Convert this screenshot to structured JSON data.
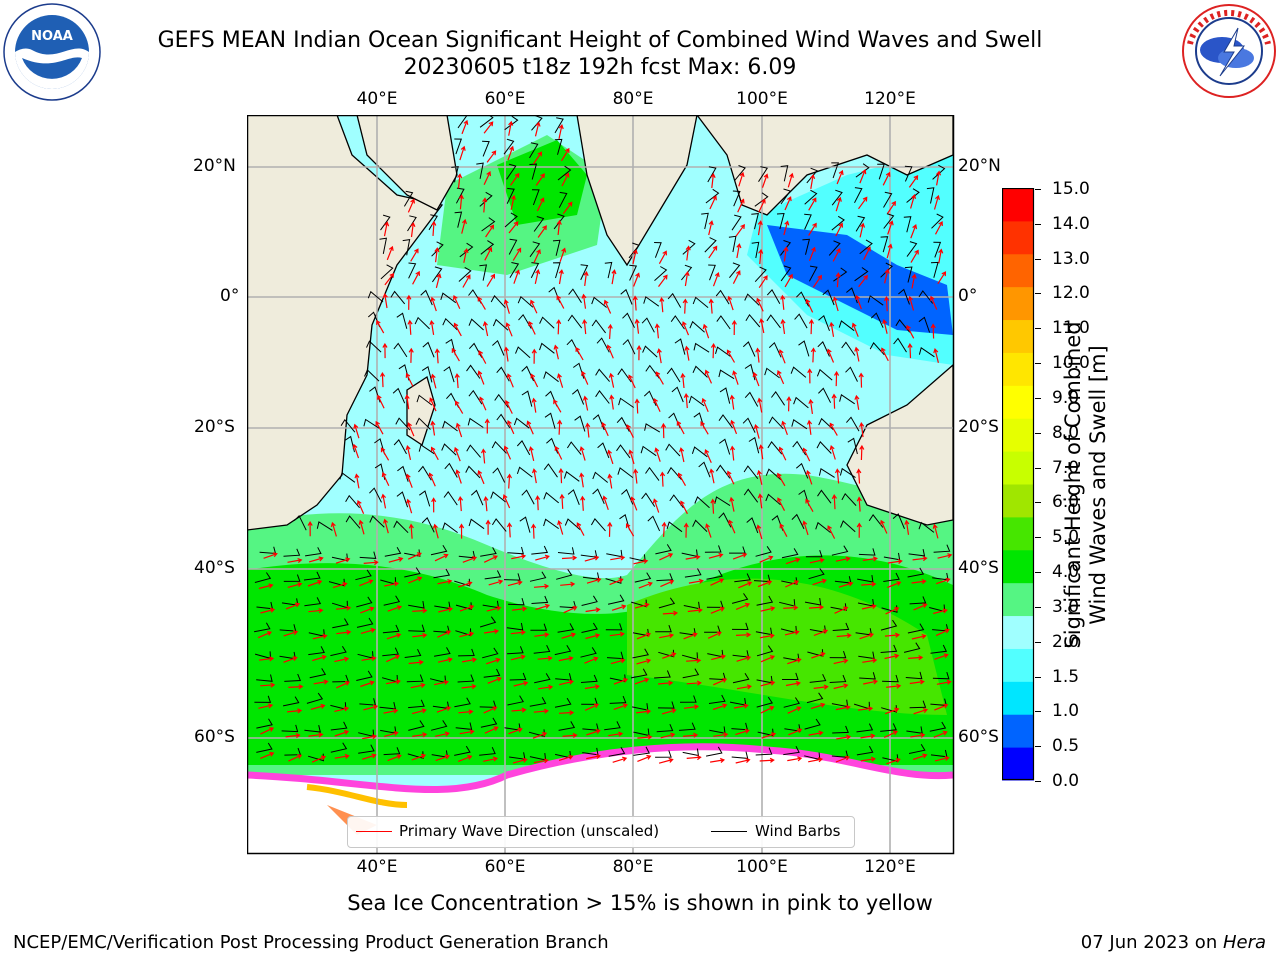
{
  "header": {
    "title_line1": "GEFS MEAN Indian Ocean Significant Height of Combined Wind Waves and Swell",
    "title_line2": "20230605 t18z 192h fcst   Max: 6.09"
  },
  "logos": {
    "left": "noaa-logo",
    "right": "nws-logo",
    "left_text": "NOAA"
  },
  "map": {
    "lon_labels": [
      "40°E",
      "60°E",
      "80°E",
      "100°E",
      "120°E"
    ],
    "lat_labels": [
      "20°N",
      "0°",
      "20°S",
      "40°S",
      "60°S"
    ],
    "colors": {
      "land": "#efecdc",
      "ice_free_polar": "#ffffff",
      "wave_barb": "#ff0000",
      "wind_barb": "#000000"
    }
  },
  "colorbar": {
    "ticks": [
      "15.0",
      "14.0",
      "13.0",
      "12.0",
      "11.0",
      "10.0",
      "9.0",
      "8.0",
      "7.0",
      "6.0",
      "5.0",
      "4.0",
      "3.0",
      "2.0",
      "1.5",
      "1.0",
      "0.5",
      "0.0"
    ],
    "label_line1": "Significant Height of Combined",
    "label_line2": "Wind Waves and Swell [m]",
    "colors": [
      "#0000ff",
      "#0064ff",
      "#00e6ff",
      "#52ffff",
      "#a0ffff",
      "#55f583",
      "#00e600",
      "#46e600",
      "#a0e600",
      "#c8ff00",
      "#e6ff00",
      "#ffff00",
      "#ffe600",
      "#ffc800",
      "#ff9600",
      "#ff6400",
      "#ff3200",
      "#ff0000"
    ]
  },
  "legend": {
    "wave": "Primary Wave Direction (unscaled)",
    "wind": "Wind Barbs"
  },
  "footer": {
    "caption": "Sea Ice Concentration > 15% is shown in pink to yellow",
    "credit": "NCEP/EMC/Verification Post Processing Product Generation Branch",
    "date": "07 Jun 2023 on ",
    "host": "Hera"
  }
}
